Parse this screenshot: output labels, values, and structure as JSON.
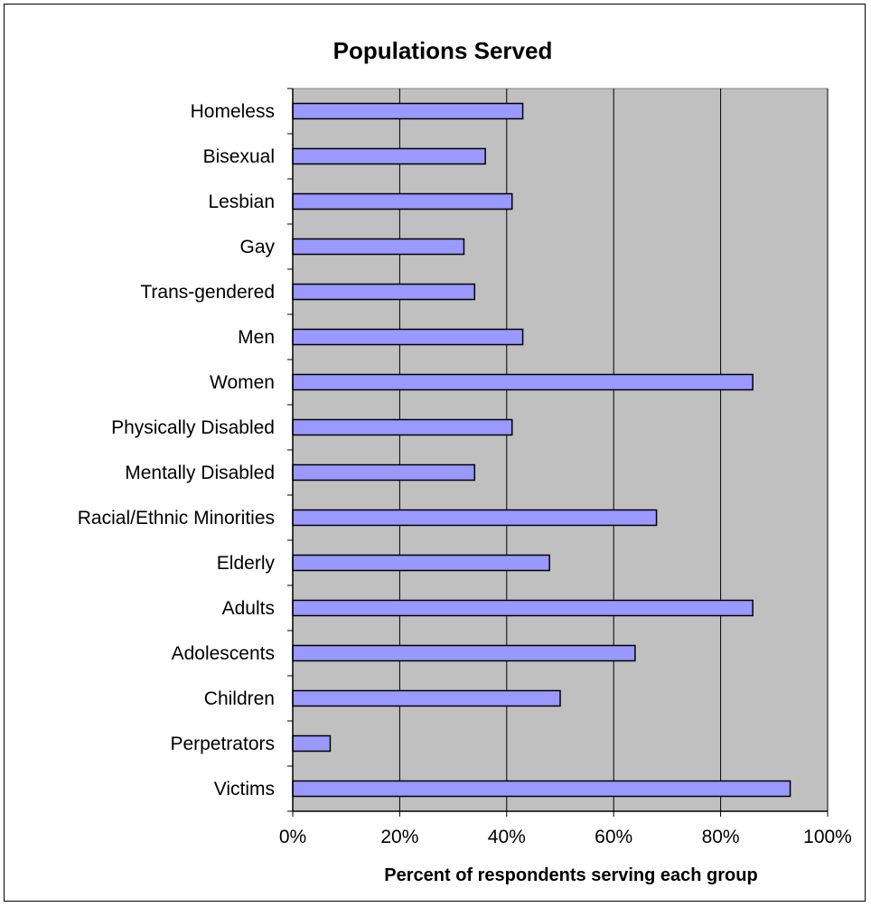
{
  "chart_data": {
    "type": "bar",
    "orientation": "horizontal",
    "title": "Populations Served",
    "xlabel": "Percent of respondents serving each group",
    "ylabel": "",
    "xlim": [
      0,
      100
    ],
    "x_ticks": [
      "0%",
      "20%",
      "40%",
      "60%",
      "80%",
      "100%"
    ],
    "grid": "vertical",
    "legend": "none",
    "categories": [
      "Homeless",
      "Bisexual",
      "Lesbian",
      "Gay",
      "Trans-gendered",
      "Men",
      "Women",
      "Physically Disabled",
      "Mentally Disabled",
      "Racial/Ethnic Minorities",
      "Elderly",
      "Adults",
      "Adolescents",
      "Children",
      "Perpetrators",
      "Victims"
    ],
    "values": [
      43,
      36,
      41,
      32,
      34,
      43,
      86,
      41,
      34,
      68,
      48,
      86,
      64,
      50,
      7,
      93
    ],
    "colors": {
      "bar_fill": "#9999ff",
      "bar_stroke": "#000000",
      "plot_background": "#c0c0c0",
      "gridline": "#000000"
    }
  }
}
